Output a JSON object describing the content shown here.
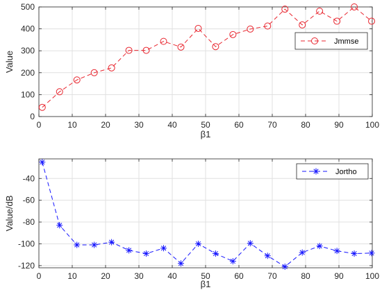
{
  "chart_data": [
    {
      "type": "line",
      "xlabel": "β1",
      "ylabel": "Value",
      "xlim": [
        0,
        100
      ],
      "ylim": [
        0,
        500
      ],
      "xticks": [
        0,
        10,
        20,
        30,
        40,
        50,
        60,
        70,
        80,
        90,
        100
      ],
      "yticks": [
        0,
        100,
        200,
        300,
        400,
        500
      ],
      "grid": true,
      "legend_position": "right",
      "series": [
        {
          "name": "Jmmse",
          "color": "#e8242d",
          "marker": "circle",
          "line_style": "dashed",
          "x": [
            1,
            6.2,
            11.4,
            16.6,
            21.8,
            27,
            32.2,
            37.4,
            42.6,
            47.8,
            53,
            58.2,
            63.4,
            68.6,
            73.8,
            79,
            84.2,
            89.4,
            94.6,
            99.8
          ],
          "y": [
            42,
            113,
            167,
            200,
            222,
            302,
            302,
            343,
            317,
            402,
            319,
            374,
            399,
            413,
            490,
            418,
            481,
            435,
            500,
            435
          ]
        }
      ]
    },
    {
      "type": "line",
      "xlabel": "β1",
      "ylabel": "Value/dB",
      "xlim": [
        0,
        100
      ],
      "ylim": [
        -122,
        -22
      ],
      "xticks": [
        0,
        10,
        20,
        30,
        40,
        50,
        60,
        70,
        80,
        90,
        100
      ],
      "yticks": [
        -120,
        -100,
        -80,
        -60,
        -40
      ],
      "grid": true,
      "legend_position": "top-right",
      "series": [
        {
          "name": "Jortho",
          "color": "#1414ff",
          "marker": "asterisk",
          "line_style": "dashed",
          "x": [
            1,
            6.2,
            11.4,
            16.6,
            21.8,
            27,
            32.2,
            37.4,
            42.6,
            47.8,
            53,
            58.2,
            63.4,
            68.6,
            73.8,
            79,
            84.2,
            89.4,
            94.6,
            99.8
          ],
          "y": [
            -25,
            -83,
            -101,
            -101,
            -98.5,
            -106,
            -109,
            -104,
            -118,
            -100,
            -109,
            -116,
            -99.5,
            -111,
            -121,
            -108,
            -102,
            -106.5,
            -109,
            -108.5
          ]
        }
      ]
    }
  ]
}
